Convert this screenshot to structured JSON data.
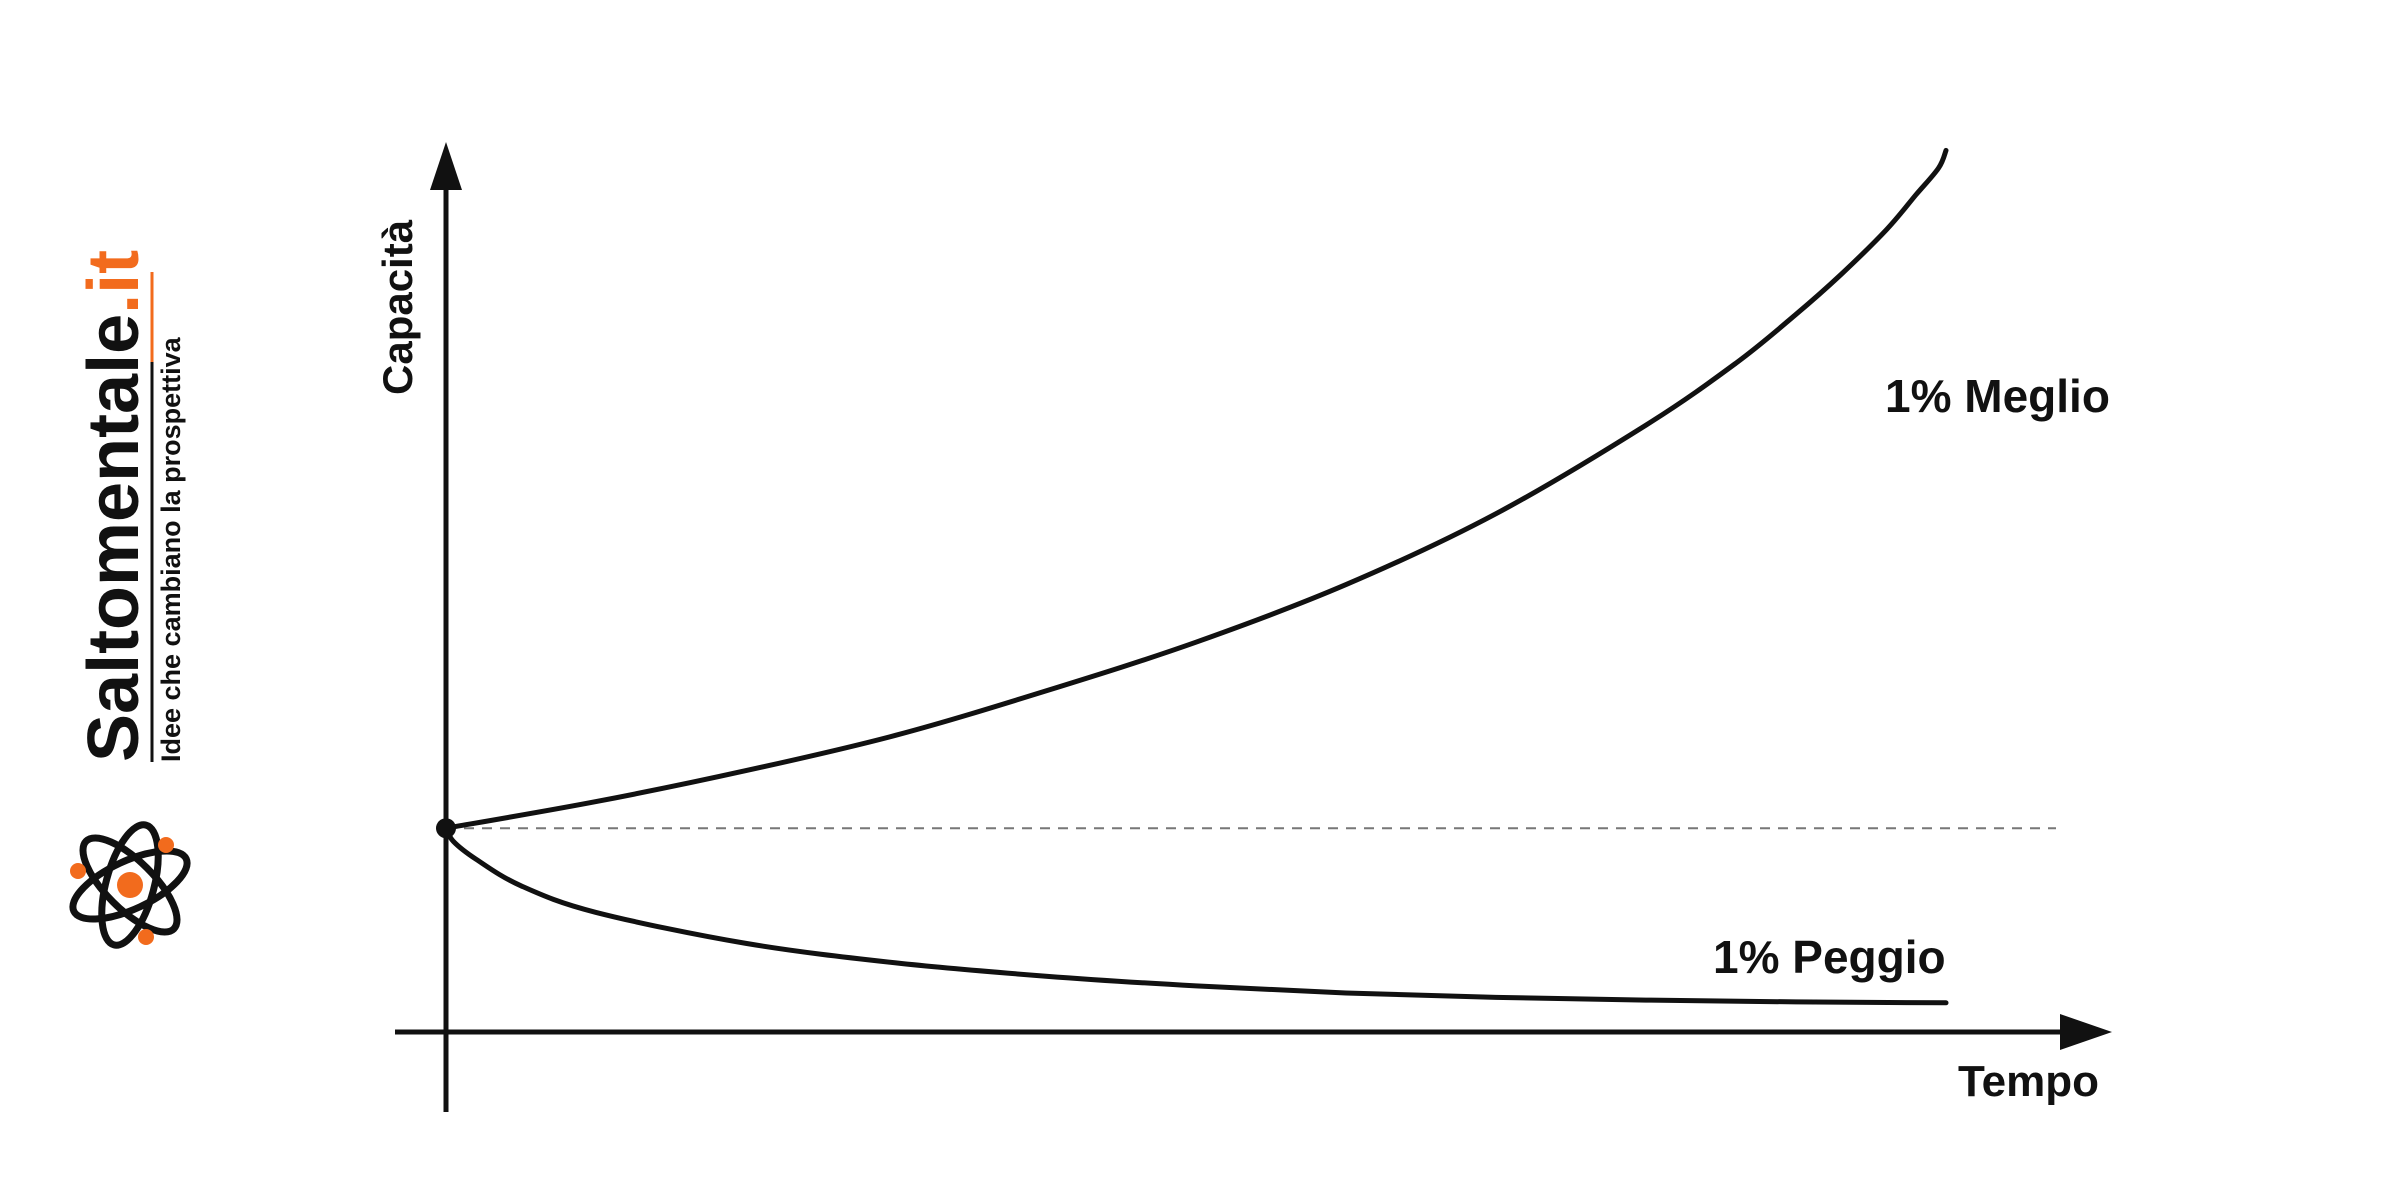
{
  "brand": {
    "name_main": "Saltomentale",
    "name_accent": ".it",
    "tagline": "Idee che cambiano la prospettiva",
    "logo_icon": "atom-icon",
    "accent_color": "#f26b1d",
    "text_color": "#111111"
  },
  "chart_data": {
    "type": "line",
    "xlabel": "Tempo",
    "ylabel": "Capacità",
    "xlim": [
      0,
      100
    ],
    "ylim": [
      0,
      100
    ],
    "grid": false,
    "baseline": {
      "y": 23,
      "style": "dashed"
    },
    "start_point": {
      "x": 0,
      "y": 23
    },
    "series": [
      {
        "name": "1% Meglio",
        "x": [
          0,
          10,
          20,
          30,
          40,
          50,
          60,
          70,
          80,
          86,
          90,
          93,
          96,
          98,
          99.5,
          100
        ],
        "y": [
          23,
          26,
          29.5,
          33.5,
          38.5,
          44,
          50.5,
          58.5,
          68.5,
          75.5,
          81,
          85.5,
          90.5,
          94.5,
          97.5,
          99.5
        ]
      },
      {
        "name": "1% Peggio",
        "x": [
          0,
          0.5,
          2,
          5,
          10,
          20,
          30,
          40,
          50,
          60,
          70,
          80,
          90,
          100
        ],
        "y": [
          23,
          21.5,
          19.5,
          16.5,
          13.5,
          10,
          7.8,
          6.3,
          5.2,
          4.4,
          3.9,
          3.6,
          3.4,
          3.3
        ]
      }
    ]
  }
}
